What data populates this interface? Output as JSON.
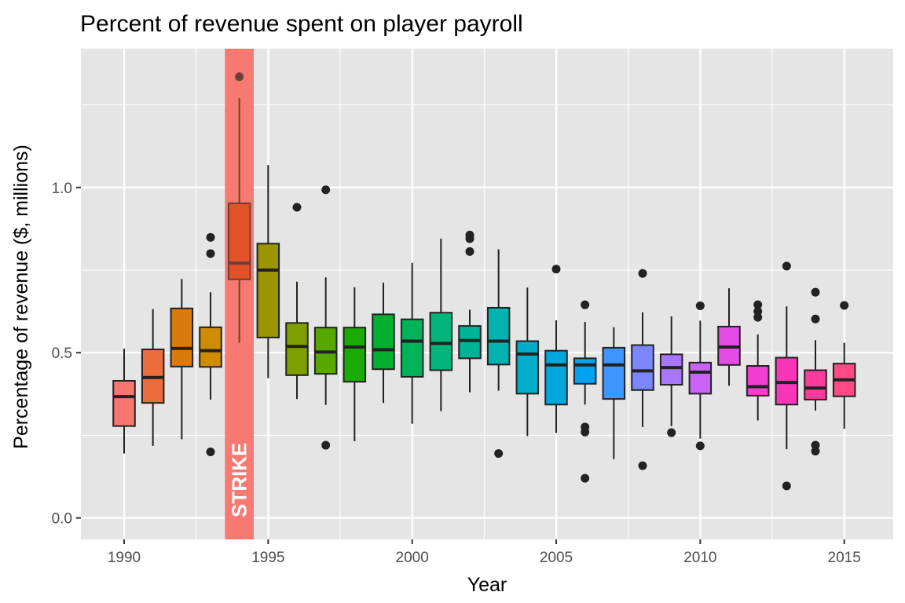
{
  "chart_data": {
    "type": "boxplot",
    "title": "Percent of revenue spent on player payroll",
    "xlabel": "Year",
    "ylabel": "Percentage of revenue ($, millions)",
    "xlim": [
      1988.5,
      2016.7
    ],
    "ylim": [
      -0.065,
      1.42
    ],
    "x_ticks": [
      "1990",
      "1995",
      "2000",
      "2005",
      "2010",
      "2015"
    ],
    "x_tick_values": [
      1990,
      1995,
      2000,
      2005,
      2010,
      2015
    ],
    "y_ticks": [
      "0.0",
      "0.5",
      "1.0"
    ],
    "y_tick_values": [
      0.0,
      0.5,
      1.0
    ],
    "grid": true,
    "legend": "none",
    "annotation": {
      "label": "STRIKE",
      "x_range": [
        1993.5,
        1994.5
      ],
      "color": "#f8766d"
    },
    "colors": {
      "panel_background": "#e5e5e5",
      "grid_line": "#ffffff",
      "box_outline": "#222222"
    },
    "boxes": [
      {
        "year": 1990,
        "whisker_low": 0.195,
        "q1": 0.278,
        "median": 0.367,
        "q3": 0.415,
        "whisker_high": 0.512,
        "outliers": [],
        "color": "#f8766d"
      },
      {
        "year": 1991,
        "whisker_low": 0.218,
        "q1": 0.348,
        "median": 0.425,
        "q3": 0.51,
        "whisker_high": 0.632,
        "outliers": [],
        "color": "#ec6c3c"
      },
      {
        "year": 1992,
        "whisker_low": 0.238,
        "q1": 0.458,
        "median": 0.513,
        "q3": 0.634,
        "whisker_high": 0.723,
        "outliers": [],
        "color": "#d97b0b"
      },
      {
        "year": 1993,
        "whisker_low": 0.358,
        "q1": 0.457,
        "median": 0.506,
        "q3": 0.577,
        "whisker_high": 0.683,
        "outliers": [
          0.849,
          0.8,
          0.2
        ],
        "color": "#cf8c00"
      },
      {
        "year": 1994,
        "whisker_low": 0.53,
        "q1": 0.722,
        "median": 0.771,
        "q3": 0.952,
        "whisker_high": 1.27,
        "outliers": [
          1.335
        ],
        "color": "#d64000"
      },
      {
        "year": 1995,
        "whisker_low": 0.423,
        "q1": 0.546,
        "median": 0.75,
        "q3": 0.83,
        "whisker_high": 1.068,
        "outliers": [],
        "color": "#9a9500"
      },
      {
        "year": 1996,
        "whisker_low": 0.36,
        "q1": 0.432,
        "median": 0.519,
        "q3": 0.59,
        "whisker_high": 0.715,
        "outliers": [
          0.94
        ],
        "color": "#7d9f00"
      },
      {
        "year": 1997,
        "whisker_low": 0.342,
        "q1": 0.436,
        "median": 0.502,
        "q3": 0.576,
        "whisker_high": 0.728,
        "outliers": [
          0.993,
          0.22
        ],
        "color": "#58a700"
      },
      {
        "year": 1998,
        "whisker_low": 0.232,
        "q1": 0.412,
        "median": 0.517,
        "q3": 0.576,
        "whisker_high": 0.698,
        "outliers": [],
        "color": "#1aab00"
      },
      {
        "year": 1999,
        "whisker_low": 0.348,
        "q1": 0.45,
        "median": 0.509,
        "q3": 0.616,
        "whisker_high": 0.712,
        "outliers": [],
        "color": "#00b02e"
      },
      {
        "year": 2000,
        "whisker_low": 0.285,
        "q1": 0.427,
        "median": 0.535,
        "q3": 0.601,
        "whisker_high": 0.772,
        "outliers": [],
        "color": "#00b35a"
      },
      {
        "year": 2001,
        "whisker_low": 0.323,
        "q1": 0.447,
        "median": 0.528,
        "q3": 0.621,
        "whisker_high": 0.845,
        "outliers": [],
        "color": "#00b67a"
      },
      {
        "year": 2002,
        "whisker_low": 0.38,
        "q1": 0.483,
        "median": 0.537,
        "q3": 0.581,
        "whisker_high": 0.63,
        "outliers": [
          0.856,
          0.845,
          0.806
        ],
        "color": "#00b596"
      },
      {
        "year": 2003,
        "whisker_low": 0.385,
        "q1": 0.464,
        "median": 0.535,
        "q3": 0.636,
        "whisker_high": 0.813,
        "outliers": [
          0.195
        ],
        "color": "#00b3b0"
      },
      {
        "year": 2004,
        "whisker_low": 0.248,
        "q1": 0.376,
        "median": 0.496,
        "q3": 0.535,
        "whisker_high": 0.697,
        "outliers": [],
        "color": "#00afc7"
      },
      {
        "year": 2005,
        "whisker_low": 0.257,
        "q1": 0.343,
        "median": 0.463,
        "q3": 0.506,
        "whisker_high": 0.598,
        "outliers": [
          0.753
        ],
        "color": "#00a8de"
      },
      {
        "year": 2006,
        "whisker_low": 0.343,
        "q1": 0.406,
        "median": 0.463,
        "q3": 0.483,
        "whisker_high": 0.593,
        "outliers": [
          0.645,
          0.275,
          0.26,
          0.12
        ],
        "color": "#00a2f2"
      },
      {
        "year": 2007,
        "whisker_low": 0.178,
        "q1": 0.36,
        "median": 0.463,
        "q3": 0.515,
        "whisker_high": 0.577,
        "outliers": [],
        "color": "#3f95ff"
      },
      {
        "year": 2008,
        "whisker_low": 0.275,
        "q1": 0.387,
        "median": 0.445,
        "q3": 0.523,
        "whisker_high": 0.622,
        "outliers": [
          0.74,
          0.158
        ],
        "color": "#7b86ff"
      },
      {
        "year": 2009,
        "whisker_low": 0.278,
        "q1": 0.403,
        "median": 0.455,
        "q3": 0.495,
        "whisker_high": 0.61,
        "outliers": [
          0.258
        ],
        "color": "#a876ff"
      },
      {
        "year": 2010,
        "whisker_low": 0.24,
        "q1": 0.376,
        "median": 0.441,
        "q3": 0.47,
        "whisker_high": 0.597,
        "outliers": [
          0.642,
          0.218
        ],
        "color": "#c963f5"
      },
      {
        "year": 2011,
        "whisker_low": 0.4,
        "q1": 0.463,
        "median": 0.517,
        "q3": 0.579,
        "whisker_high": 0.695,
        "outliers": [],
        "color": "#e34ce7"
      },
      {
        "year": 2012,
        "whisker_low": 0.295,
        "q1": 0.37,
        "median": 0.397,
        "q3": 0.46,
        "whisker_high": 0.555,
        "outliers": [
          0.645,
          0.625,
          0.607
        ],
        "color": "#f23ed0"
      },
      {
        "year": 2013,
        "whisker_low": 0.208,
        "q1": 0.343,
        "median": 0.41,
        "q3": 0.485,
        "whisker_high": 0.64,
        "outliers": [
          0.762,
          0.097
        ],
        "color": "#fa36b8"
      },
      {
        "year": 2014,
        "whisker_low": 0.325,
        "q1": 0.358,
        "median": 0.393,
        "q3": 0.447,
        "whisker_high": 0.538,
        "outliers": [
          0.683,
          0.602,
          0.22,
          0.202
        ],
        "color": "#ff3a9d"
      },
      {
        "year": 2015,
        "whisker_low": 0.27,
        "q1": 0.368,
        "median": 0.418,
        "q3": 0.467,
        "whisker_high": 0.53,
        "outliers": [
          0.643
        ],
        "color": "#ff4a84"
      }
    ]
  }
}
